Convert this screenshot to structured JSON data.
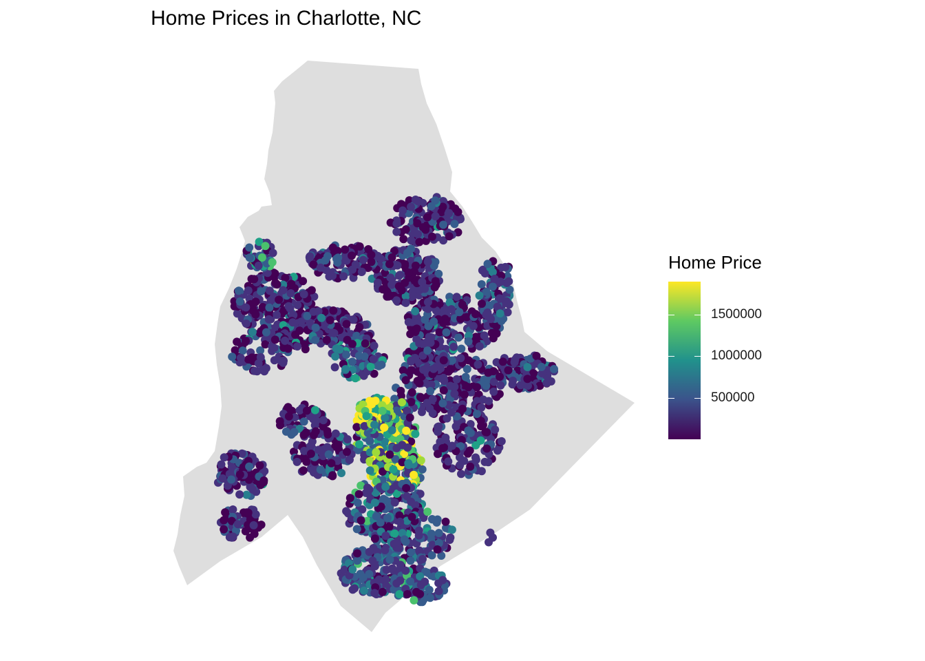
{
  "title": "Home Prices in Charlotte, NC",
  "colors": {
    "county_fill": "#dedede",
    "palette": [
      "#440154",
      "#3b528b",
      "#21918c",
      "#5ec962",
      "#fde725"
    ]
  },
  "legend": {
    "title": "Home Price",
    "breaks": [
      {
        "value": 500000,
        "label": "500000"
      },
      {
        "value": 1000000,
        "label": "1000000"
      },
      {
        "value": 1500000,
        "label": "1500000"
      }
    ],
    "min": 0,
    "max": 1900000
  },
  "map_data": {
    "region": "Mecklenburg County boundary (gray fill)",
    "point_layer": "home sale locations colored by price (viridis scale)",
    "price_range": [
      0,
      1900000
    ]
  }
}
